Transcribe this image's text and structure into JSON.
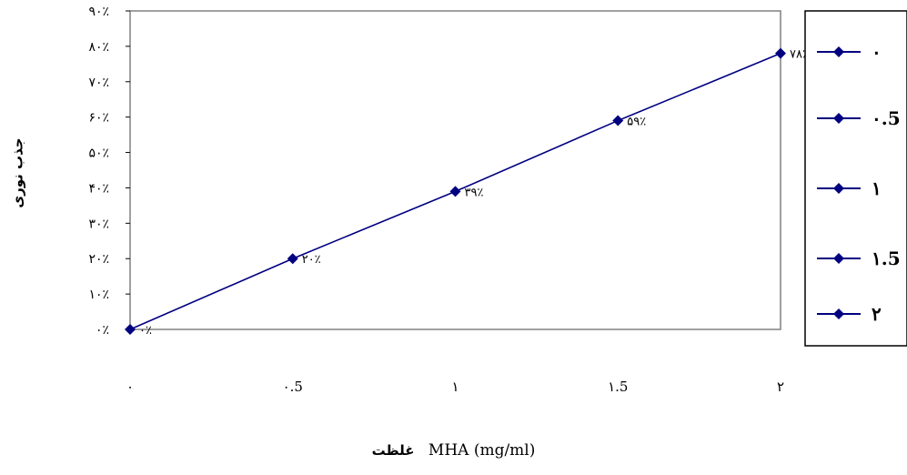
{
  "chart_data": {
    "type": "line",
    "categories": [
      "۰",
      "۰.5",
      "۱",
      "۱.5",
      "۲"
    ],
    "x": [
      0,
      0.5,
      1,
      1.5,
      2
    ],
    "values": [
      0,
      20,
      39,
      59,
      78
    ],
    "data_labels": [
      "۰٪",
      "۲۰٪",
      "۳۹٪",
      "۵۹٪",
      "۷۸٪"
    ],
    "ylim": [
      0,
      90
    ],
    "yticks": [
      0,
      10,
      20,
      30,
      40,
      50,
      60,
      70,
      80,
      90
    ],
    "ytick_labels": [
      "۰٪",
      "۱۰٪",
      "۲۰٪",
      "۳۰٪",
      "۴۰٪",
      "۵۰٪",
      "۶۰٪",
      "۷۰٪",
      "۸۰٪",
      "۹۰٪"
    ],
    "ylabel": "جذب نوری",
    "xlabel_ar": "غلظت",
    "xlabel_en": "MHA (mg/ml)",
    "legend": [
      "۰",
      "۰.5",
      "۱",
      "۱.5",
      "۲"
    ],
    "legend_position": "right",
    "line_color": "#000080",
    "grid": false
  }
}
